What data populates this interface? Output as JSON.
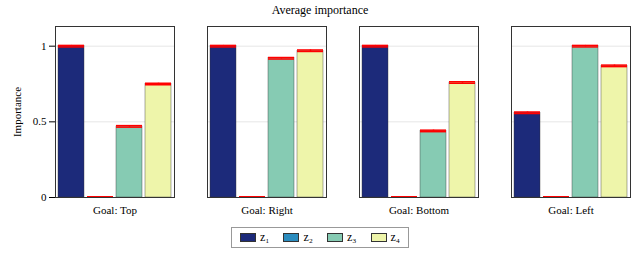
{
  "chart_data": {
    "type": "bar",
    "title": "Average importance",
    "y_label": "Importance",
    "categories": [
      "Goal: Top",
      "Goal: Right",
      "Goal: Bottom",
      "Goal: Left"
    ],
    "series": [
      {
        "name": "z₁",
        "color": "#1c2a7a",
        "values": [
          1,
          1,
          1,
          0.56
        ],
        "errors": [
          0.005,
          0.005,
          0.005,
          0.005
        ]
      },
      {
        "name": "z₂",
        "color": "#2b8cbe",
        "values": [
          0,
          0,
          0,
          0
        ],
        "errors": [
          0.005,
          0.005,
          0.005,
          0.005
        ]
      },
      {
        "name": "z₃",
        "color": "#86cbb3",
        "values": [
          0.47,
          0.92,
          0.44,
          1
        ],
        "errors": [
          0.005,
          0.005,
          0.005,
          0.005
        ]
      },
      {
        "name": "z₄",
        "color": "#eef5aa",
        "values": [
          0.75,
          0.97,
          0.76,
          0.87
        ],
        "errors": [
          0.005,
          0.005,
          0.005,
          0.005
        ]
      }
    ],
    "ylim": [
      0,
      1.13
    ],
    "yticks": [
      0,
      0.5,
      1
    ],
    "grid": true,
    "legend": "bottom"
  }
}
